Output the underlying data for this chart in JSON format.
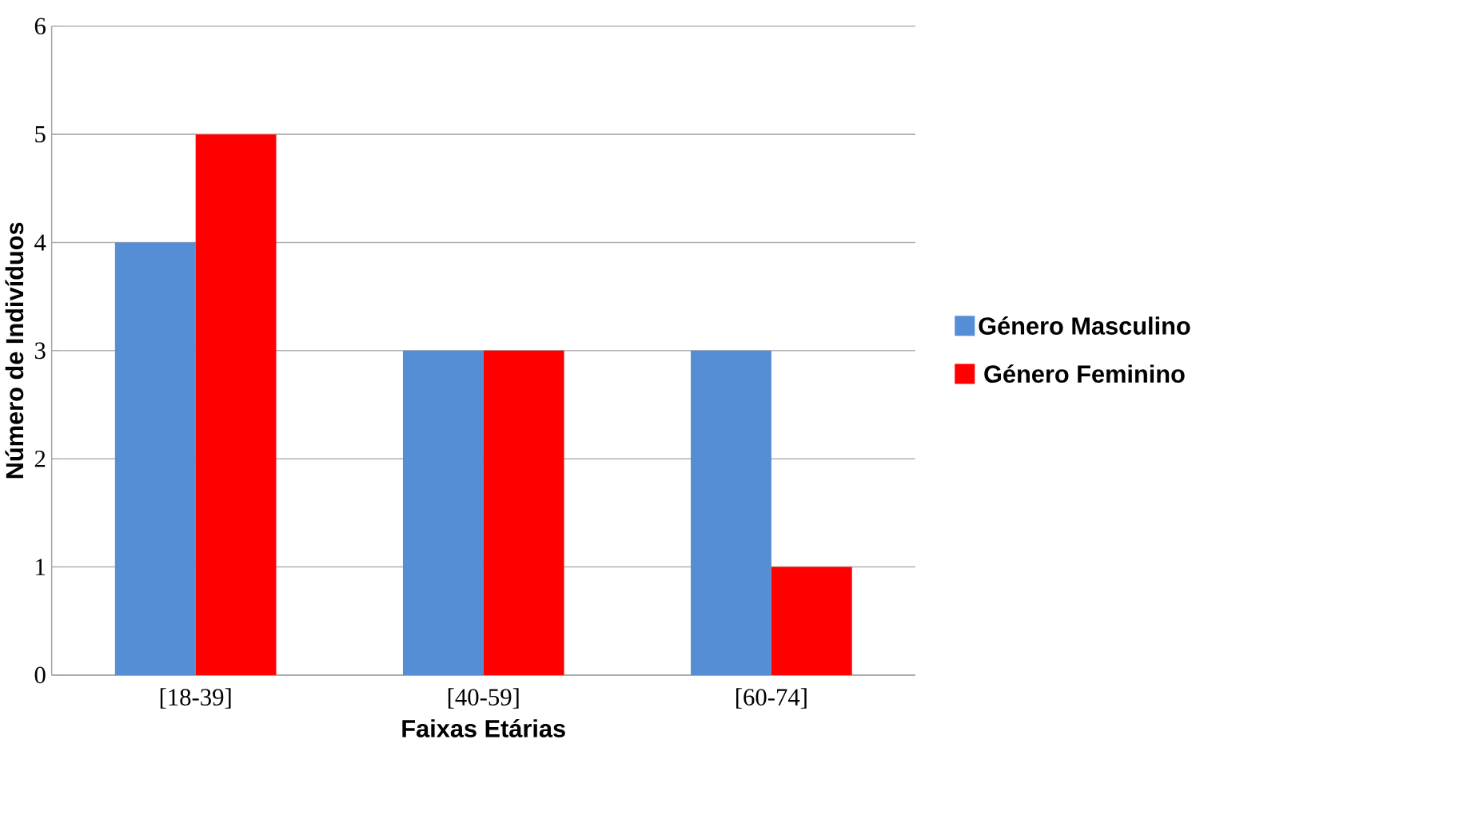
{
  "chart_data": {
    "type": "bar",
    "xlabel": "Faixas Etárias",
    "ylabel": "Número de Indivíduos",
    "categories": [
      "[18-39]",
      "[40-59]",
      "[60-74]"
    ],
    "series": [
      {
        "name": "Género Masculino",
        "color": "#558ed5",
        "values": [
          4,
          3,
          3
        ]
      },
      {
        "name": "Género Feminino",
        "color": "#ff0000",
        "values": [
          5,
          3,
          1
        ]
      }
    ],
    "ylim": [
      0,
      6
    ],
    "yticks": [
      0,
      1,
      2,
      3,
      4,
      5,
      6
    ],
    "grid": "y",
    "legend": "right"
  }
}
